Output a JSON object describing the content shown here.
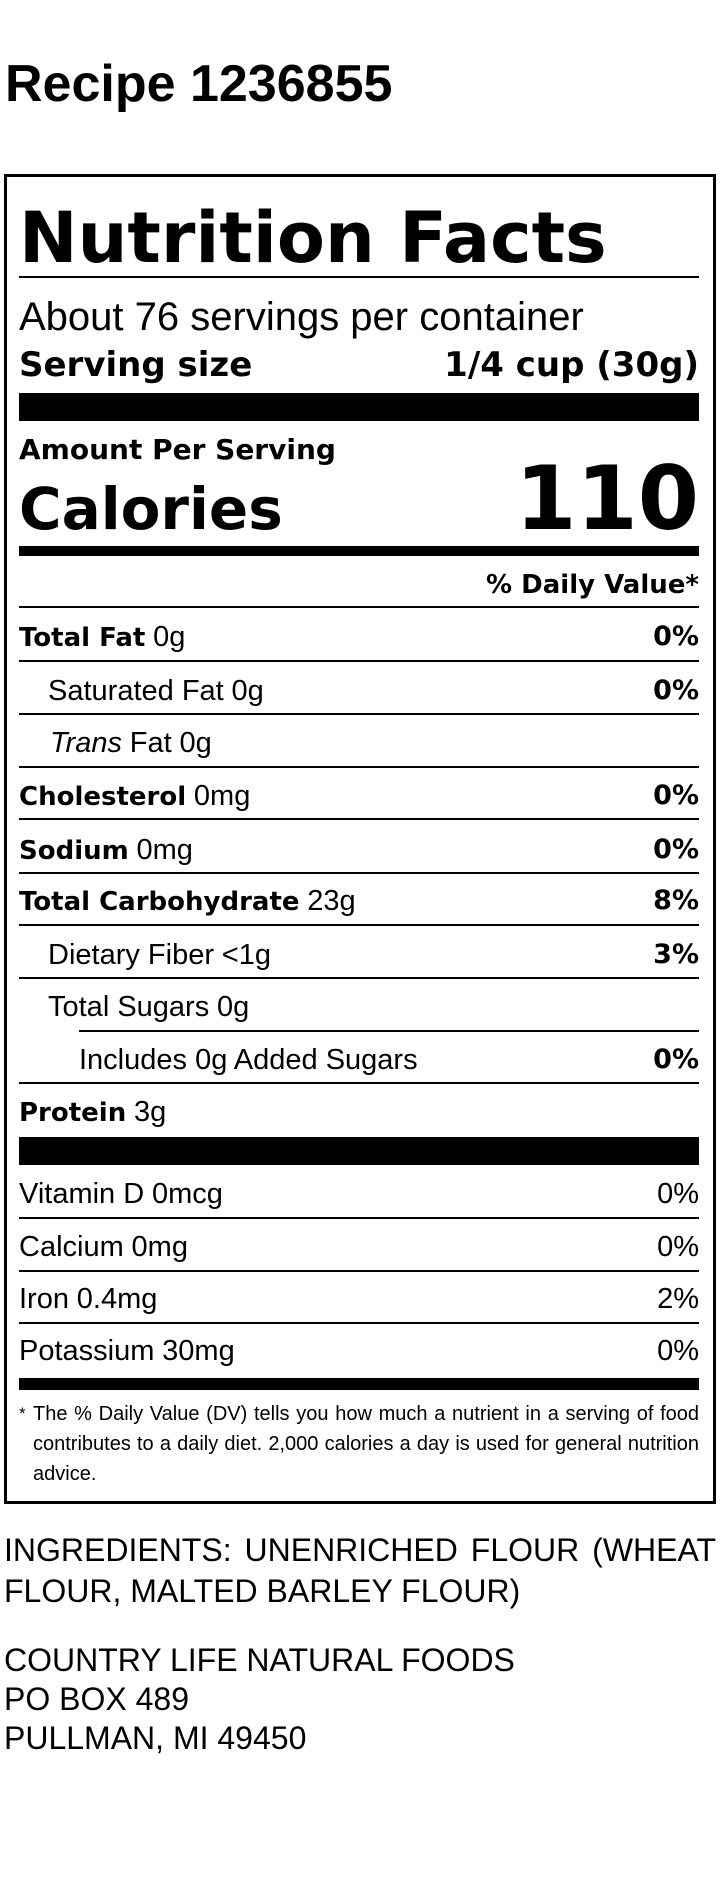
{
  "recipe_title": "Recipe 1236855",
  "label": {
    "title": "Nutrition Facts",
    "servings_per_container": "About 76 servings per container",
    "serving_size_label": "Serving size",
    "serving_size_value": "1/4 cup (30g)",
    "amount_per_serving": "Amount Per Serving",
    "calories_label": "Calories",
    "calories_value": "110",
    "daily_value_header": "% Daily Value*",
    "nutrients": [
      {
        "name": "Total Fat",
        "amount": "0g",
        "dv": "0%"
      },
      {
        "name": "Saturated Fat",
        "amount": "0g",
        "dv": "0%"
      },
      {
        "name": "Trans",
        "name_suffix": "Fat",
        "amount": "0g"
      },
      {
        "name": "Cholesterol",
        "amount": "0mg",
        "dv": "0%"
      },
      {
        "name": "Sodium",
        "amount": "0mg",
        "dv": "0%"
      },
      {
        "name": "Total Carbohydrate",
        "amount": "23g",
        "dv": "8%"
      },
      {
        "name": "Dietary Fiber",
        "amount": "<1g",
        "dv": "3%"
      },
      {
        "name": "Total Sugars",
        "amount": "0g"
      },
      {
        "name": "Includes 0g Added Sugars",
        "dv": "0%"
      },
      {
        "name": "Protein",
        "amount": "3g"
      }
    ],
    "vitamins": [
      {
        "name": "Vitamin D",
        "amount": "0mcg",
        "dv": "0%"
      },
      {
        "name": "Calcium",
        "amount": "0mg",
        "dv": "0%"
      },
      {
        "name": "Iron",
        "amount": "0.4mg",
        "dv": "2%"
      },
      {
        "name": "Potassium",
        "amount": "30mg",
        "dv": "0%"
      }
    ],
    "footnote_mark": "*",
    "footnote": "The % Daily Value (DV) tells you how much a nutrient in a serving of food contributes to a daily diet. 2,000 calories a day is used for general nutrition advice."
  },
  "ingredients": "INGREDIENTS: UNENRICHED FLOUR (WHEAT FLOUR, MALTED BARLEY FLOUR)",
  "company": {
    "name": "COUNTRY LIFE NATURAL FOODS",
    "address_line1": "PO BOX 489",
    "address_line2": "PULLMAN, MI 49450"
  }
}
